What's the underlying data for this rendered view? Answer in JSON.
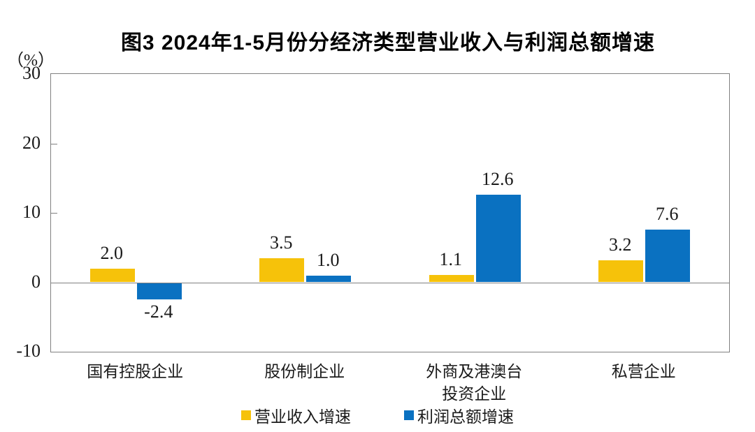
{
  "title": "图3  2024年1-5月份分经济类型营业收入与利润总额增速",
  "y_axis": {
    "unit": "（%）",
    "ticks": [
      {
        "label": "30",
        "value": 30
      },
      {
        "label": "20",
        "value": 20
      },
      {
        "label": "10",
        "value": 10
      },
      {
        "label": "0",
        "value": 0
      },
      {
        "label": "-10",
        "value": -10
      }
    ]
  },
  "legend": {
    "items": [
      {
        "label": "营业收入增速",
        "color": "#F6C20A"
      },
      {
        "label": "利润总额增速",
        "color": "#0A71C1"
      }
    ]
  },
  "colors": {
    "revenue": "#F6C20A",
    "profit": "#0A71C1",
    "axis": "#808080"
  },
  "chart_data": {
    "type": "bar",
    "title": "图3 2024年1-5月份分经济类型营业收入与利润总额增速",
    "categories": [
      "国有控股企业",
      "股份制企业",
      "外商及港澳台\n投资企业",
      "私营企业"
    ],
    "series": [
      {
        "name": "营业收入增速",
        "color": "#F6C20A",
        "values": [
          2.0,
          3.5,
          1.1,
          3.2
        ],
        "labels": [
          "2.0",
          "3.5",
          "1.1",
          "3.2"
        ]
      },
      {
        "name": "利润总额增速",
        "color": "#0A71C1",
        "values": [
          -2.4,
          1.0,
          12.6,
          7.6
        ],
        "labels": [
          "-2.4",
          "1.0",
          "12.6",
          "7.6"
        ]
      }
    ],
    "ylabel": "（%）",
    "ylim": [
      -10,
      30
    ],
    "ytick_step": 10,
    "grid": false,
    "legend_position": "bottom"
  }
}
